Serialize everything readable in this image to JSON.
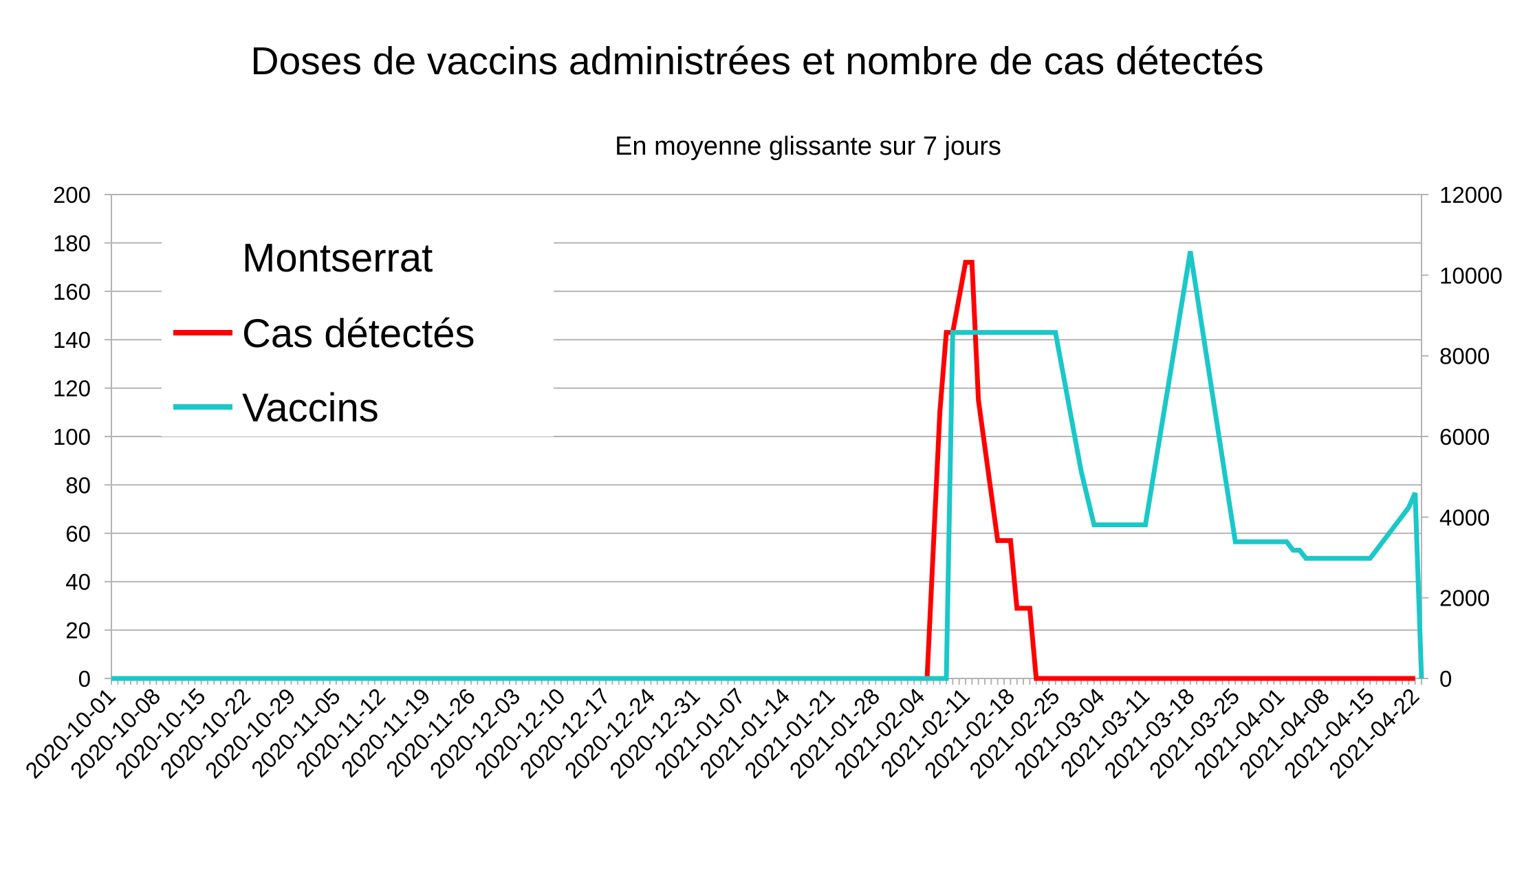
{
  "chart_data": {
    "type": "line",
    "title": "Doses de vaccins administrées et nombre de cas détectés",
    "subtitle": "En moyenne glissante sur 7 jours",
    "legend_title": "Montserrat",
    "legend_position": "top-left",
    "grid": true,
    "x_start": "2020-10-01",
    "x_end": "2021-04-23",
    "x_tick_labels": [
      "2020-10-01",
      "2020-10-08",
      "2020-10-15",
      "2020-10-22",
      "2020-10-29",
      "2020-11-05",
      "2020-11-12",
      "2020-11-19",
      "2020-11-26",
      "2020-12-03",
      "2020-12-10",
      "2020-12-17",
      "2020-12-24",
      "2020-12-31",
      "2021-01-07",
      "2021-01-14",
      "2021-01-21",
      "2021-01-28",
      "2021-02-04",
      "2021-02-11",
      "2021-02-18",
      "2021-02-25",
      "2021-03-04",
      "2021-03-11",
      "2021-03-18",
      "2021-03-25",
      "2021-04-01",
      "2021-04-08",
      "2021-04-15",
      "2021-04-22"
    ],
    "y_left": {
      "min": 0,
      "max": 200,
      "ticks": [
        "0",
        "20",
        "40",
        "60",
        "80",
        "100",
        "120",
        "140",
        "160",
        "180",
        "200"
      ]
    },
    "y_right": {
      "min": 0,
      "max": 12000,
      "ticks": [
        "0",
        "2000",
        "4000",
        "6000",
        "8000",
        "10000",
        "12000"
      ]
    },
    "series": [
      {
        "name": "Cas détectés",
        "axis": "left",
        "color": "#ff0000",
        "points": [
          [
            "2020-10-01",
            0
          ],
          [
            "2021-02-05",
            0
          ],
          [
            "2021-02-07",
            110
          ],
          [
            "2021-02-08",
            143
          ],
          [
            "2021-02-09",
            143
          ],
          [
            "2021-02-11",
            172
          ],
          [
            "2021-02-12",
            172
          ],
          [
            "2021-02-13",
            115
          ],
          [
            "2021-02-16",
            57
          ],
          [
            "2021-02-17",
            57
          ],
          [
            "2021-02-18",
            57
          ],
          [
            "2021-02-19",
            29
          ],
          [
            "2021-02-20",
            29
          ],
          [
            "2021-02-21",
            29
          ],
          [
            "2021-02-22",
            0
          ],
          [
            "2021-04-22",
            0
          ]
        ]
      },
      {
        "name": "Vaccins",
        "axis": "right",
        "color": "#1ac8c8",
        "points": [
          [
            "2020-10-01",
            0
          ],
          [
            "2021-02-08",
            0
          ],
          [
            "2021-02-09",
            8580
          ],
          [
            "2021-02-25",
            8580
          ],
          [
            "2021-03-01",
            5140
          ],
          [
            "2021-03-03",
            3810
          ],
          [
            "2021-03-11",
            3810
          ],
          [
            "2021-03-18",
            10590
          ],
          [
            "2021-03-25",
            3390
          ],
          [
            "2021-04-02",
            3390
          ],
          [
            "2021-04-03",
            3180
          ],
          [
            "2021-04-04",
            3180
          ],
          [
            "2021-04-05",
            2980
          ],
          [
            "2021-04-15",
            2980
          ],
          [
            "2021-04-21",
            4240
          ],
          [
            "2021-04-22",
            4600
          ],
          [
            "2021-04-23",
            0
          ]
        ]
      }
    ]
  }
}
